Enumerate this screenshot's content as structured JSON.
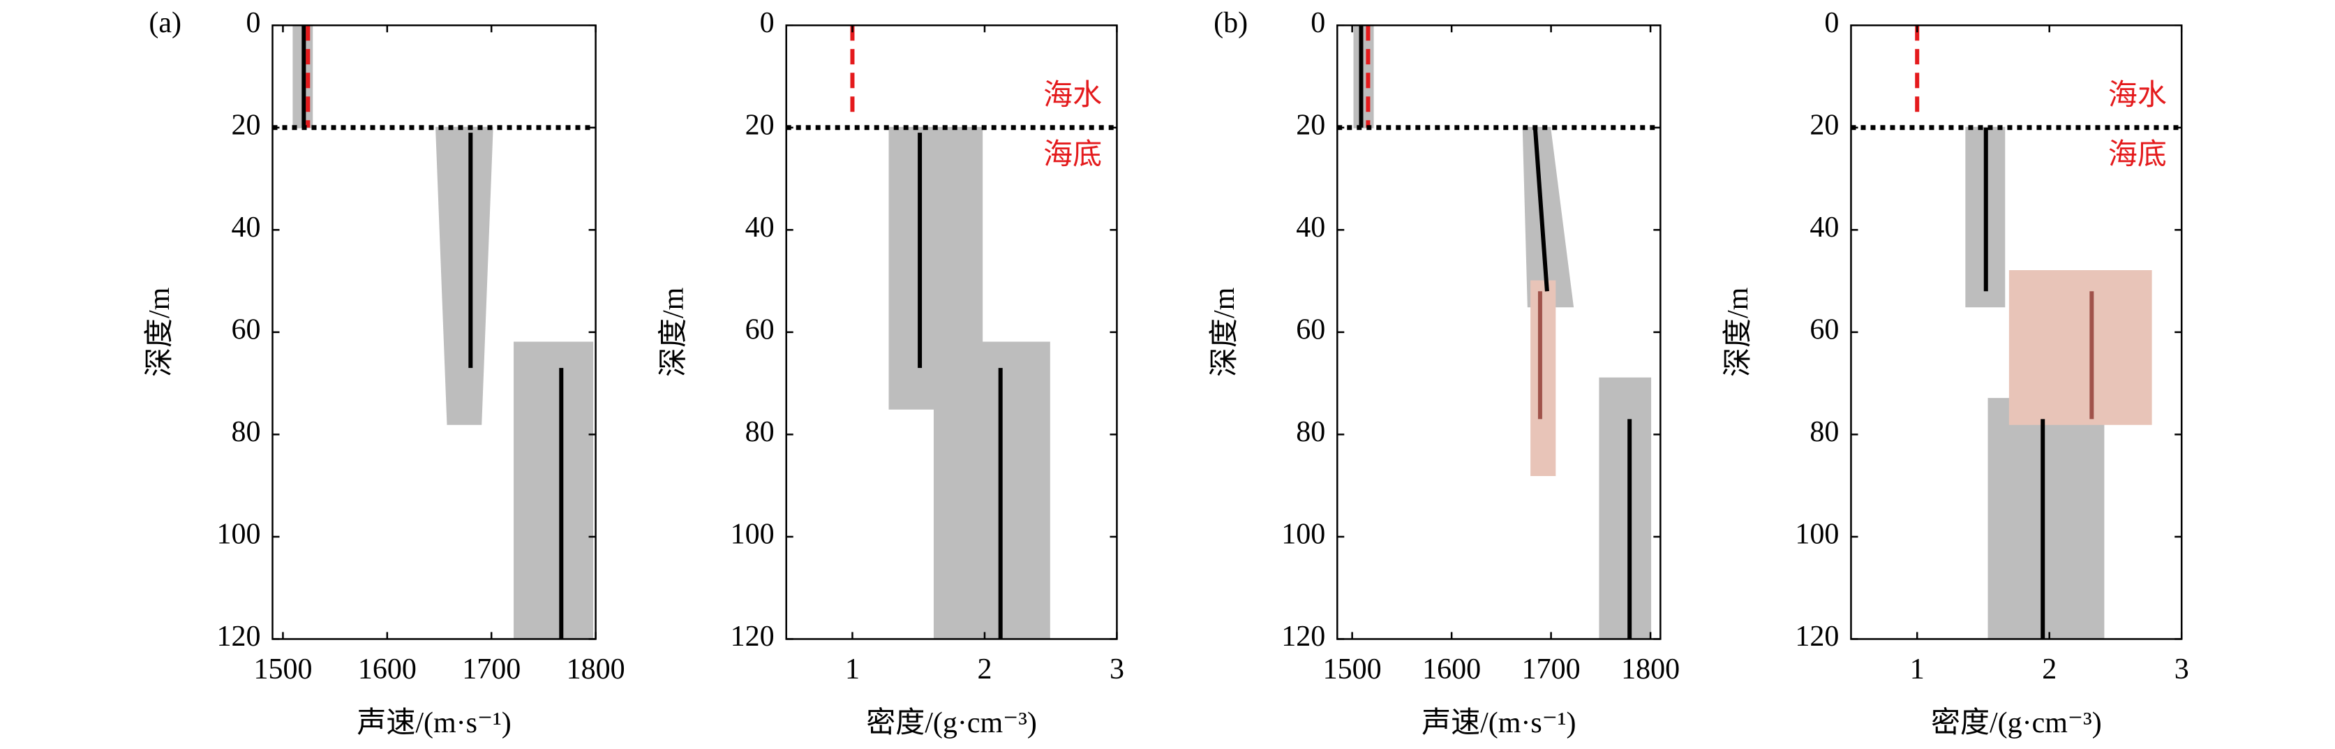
{
  "chart_data": [
    {
      "type": "line",
      "panel_label": "(a)",
      "xlabel": "声速/(m·s⁻¹)",
      "ylabel": "深度/m",
      "xlim": [
        1490,
        1800
      ],
      "xticks": [
        1500,
        1600,
        1700,
        1800
      ],
      "ylim": [
        0,
        120
      ],
      "yticks": [
        0,
        20,
        40,
        60,
        80,
        100,
        120
      ],
      "y_inverted": true,
      "seabed_depth": 20,
      "bands": [
        {
          "color": "#bdbdbd",
          "y": [
            0,
            20
          ],
          "left": [
            1510,
            1510
          ],
          "right": [
            1528,
            1528
          ]
        },
        {
          "color": "#bdbdbd",
          "y": [
            20,
            78
          ],
          "left": [
            1647,
            1658
          ],
          "right": [
            1701,
            1690
          ]
        },
        {
          "color": "#bdbdbd",
          "y": [
            62,
            120
          ],
          "left": [
            1722,
            1722
          ],
          "right": [
            1797,
            1797
          ]
        }
      ],
      "series": [
        {
          "color": "#000000",
          "dash": "solid",
          "x": [
            1520,
            1520
          ],
          "y": [
            0,
            20
          ]
        },
        {
          "color": "#e41a1c",
          "dash": "dashed",
          "x": [
            1524,
            1524
          ],
          "y": [
            0,
            20
          ]
        },
        {
          "color": "#000000",
          "dash": "solid",
          "x": [
            1680,
            1680
          ],
          "y": [
            21,
            67
          ]
        },
        {
          "color": "#000000",
          "dash": "solid",
          "x": [
            1767,
            1767
          ],
          "y": [
            67,
            120
          ]
        }
      ]
    },
    {
      "type": "line",
      "xlabel": "密度/(g·cm⁻³)",
      "ylabel": "深度/m",
      "xlim": [
        0.5,
        3
      ],
      "xticks": [
        1,
        2,
        3
      ],
      "ylim": [
        0,
        120
      ],
      "yticks": [
        0,
        20,
        40,
        60,
        80,
        100,
        120
      ],
      "y_inverted": true,
      "seabed_depth": 20,
      "annotations": [
        "海水",
        "海底"
      ],
      "bands": [
        {
          "color": "#bdbdbd",
          "y": [
            20,
            75
          ],
          "left": [
            1.28,
            1.28
          ],
          "right": [
            1.98,
            1.98
          ]
        },
        {
          "color": "#bdbdbd",
          "y": [
            62,
            120
          ],
          "left": [
            1.62,
            1.62
          ],
          "right": [
            2.49,
            2.49
          ]
        }
      ],
      "series": [
        {
          "color": "#e41a1c",
          "dash": "dashed",
          "x": [
            1,
            1
          ],
          "y": [
            0,
            17
          ]
        },
        {
          "color": "#000000",
          "dash": "solid",
          "x": [
            1.51,
            1.51
          ],
          "y": [
            21,
            67
          ]
        },
        {
          "color": "#000000",
          "dash": "solid",
          "x": [
            2.12,
            2.12
          ],
          "y": [
            67,
            120
          ]
        }
      ]
    },
    {
      "type": "line",
      "panel_label": "(b)",
      "xlabel": "声速/(m·s⁻¹)",
      "ylabel": "深度/m",
      "xlim": [
        1485,
        1810
      ],
      "xticks": [
        1500,
        1600,
        1700,
        1800
      ],
      "ylim": [
        0,
        120
      ],
      "yticks": [
        0,
        20,
        40,
        60,
        80,
        100,
        120
      ],
      "y_inverted": true,
      "seabed_depth": 20,
      "bands": [
        {
          "color": "#bdbdbd",
          "y": [
            0,
            20
          ],
          "left": [
            1502,
            1502
          ],
          "right": [
            1521,
            1521
          ]
        },
        {
          "color": "#bdbdbd",
          "y": [
            20,
            55
          ],
          "left": [
            1672,
            1677
          ],
          "right": [
            1699,
            1722
          ]
        },
        {
          "color": "#e8c4b8",
          "y": [
            50,
            88
          ],
          "left": [
            1680,
            1680
          ],
          "right": [
            1704,
            1704
          ]
        },
        {
          "color": "#bdbdbd",
          "y": [
            69,
            120
          ],
          "left": [
            1749,
            1749
          ],
          "right": [
            1800,
            1800
          ]
        }
      ],
      "series": [
        {
          "color": "#000000",
          "dash": "solid",
          "x": [
            1509,
            1509
          ],
          "y": [
            0,
            20
          ]
        },
        {
          "color": "#e41a1c",
          "dash": "dashed",
          "x": [
            1516,
            1516
          ],
          "y": [
            0,
            20
          ]
        },
        {
          "color": "#000000",
          "dash": "solid",
          "x": [
            1684,
            1696
          ],
          "y": [
            20,
            52
          ]
        },
        {
          "color": "#a0524a",
          "dash": "solid",
          "x": [
            1689,
            1689
          ],
          "y": [
            52,
            77
          ]
        },
        {
          "color": "#000000",
          "dash": "solid",
          "x": [
            1779,
            1779
          ],
          "y": [
            77,
            120
          ]
        }
      ]
    },
    {
      "type": "line",
      "xlabel": "密度/(g·cm⁻³)",
      "ylabel": "深度/m",
      "xlim": [
        0.5,
        3
      ],
      "xticks": [
        1,
        2,
        3
      ],
      "ylim": [
        0,
        120
      ],
      "yticks": [
        0,
        20,
        40,
        60,
        80,
        100,
        120
      ],
      "y_inverted": true,
      "seabed_depth": 20,
      "annotations": [
        "海水",
        "海底"
      ],
      "bands": [
        {
          "color": "#bdbdbd",
          "y": [
            20,
            55
          ],
          "left": [
            1.37,
            1.37
          ],
          "right": [
            1.66,
            1.66
          ]
        },
        {
          "color": "#bdbdbd",
          "y": [
            73,
            120
          ],
          "left": [
            1.54,
            1.54
          ],
          "right": [
            2.41,
            2.41
          ]
        },
        {
          "color": "#e8c4b8",
          "y": [
            48,
            78
          ],
          "left": [
            1.7,
            1.7
          ],
          "right": [
            2.77,
            2.77
          ]
        }
      ],
      "series": [
        {
          "color": "#e41a1c",
          "dash": "dashed",
          "x": [
            1,
            1
          ],
          "y": [
            0,
            17
          ]
        },
        {
          "color": "#000000",
          "dash": "solid",
          "x": [
            1.52,
            1.52
          ],
          "y": [
            20,
            52
          ]
        },
        {
          "color": "#a0524a",
          "dash": "solid",
          "x": [
            2.32,
            2.32
          ],
          "y": [
            52,
            77
          ]
        },
        {
          "color": "#000000",
          "dash": "solid",
          "x": [
            1.95,
            1.95
          ],
          "y": [
            77,
            120
          ]
        }
      ]
    }
  ]
}
